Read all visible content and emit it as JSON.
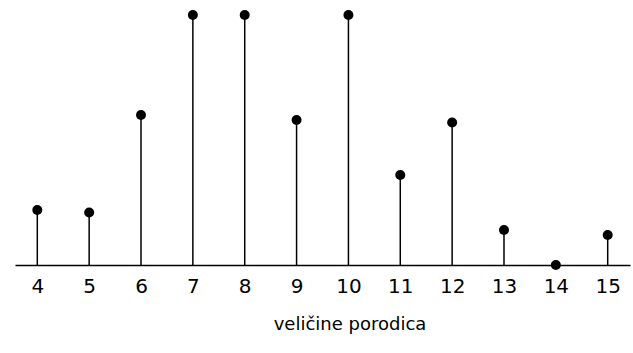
{
  "chart_data": {
    "type": "stem",
    "x_label": "veličine porodica",
    "categories": [
      "4",
      "5",
      "6",
      "7",
      "8",
      "9",
      "10",
      "11",
      "12",
      "13",
      "14",
      "15"
    ],
    "values": [
      2.2,
      2.1,
      6,
      10,
      10,
      5.8,
      10,
      3.6,
      5.7,
      1.4,
      0,
      1.2
    ],
    "color": "#000000",
    "marker": "circle",
    "ylim": [
      0,
      10.5
    ],
    "grid": false,
    "tick_labels": "x"
  }
}
